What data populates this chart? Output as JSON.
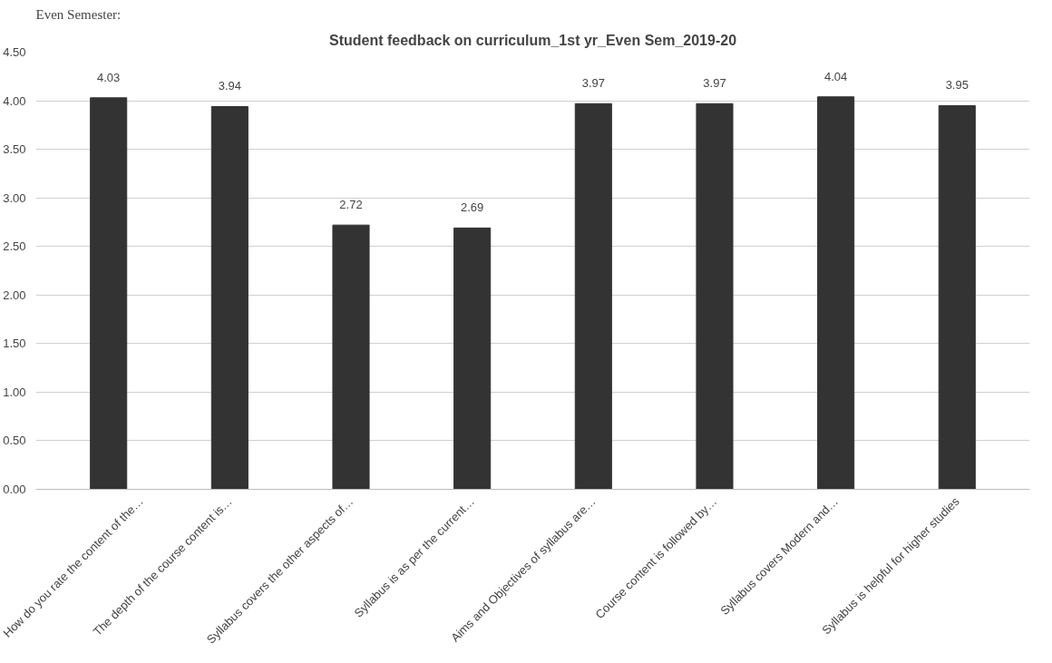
{
  "chart_data": {
    "type": "bar",
    "title": "Student feedback on curriculum_1st yr_Even Sem_2019-20",
    "categories": [
      "How do you rate the content of the…",
      "The depth of the course content is…",
      "Syllabus covers the other aspects of…",
      "Syllabus is as per the current…",
      "Aims and Objectives of syllabus are…",
      "Course content is followed by…",
      "Syllabus covers Modern and…",
      "Syllabus is helpful for higher studies"
    ],
    "values": [
      4.03,
      3.94,
      2.72,
      2.69,
      3.97,
      3.97,
      4.04,
      3.95
    ],
    "color": "#333333",
    "ylim": [
      0,
      4.5
    ],
    "yticks": [
      {
        "value": 0,
        "label": "0.00"
      },
      {
        "value": 0.5,
        "label": "0.50"
      },
      {
        "value": 1,
        "label": "1.00"
      },
      {
        "value": 1.5,
        "label": "1.50"
      },
      {
        "value": 2,
        "label": "2.00"
      },
      {
        "value": 2.5,
        "label": "2.50"
      },
      {
        "value": 3,
        "label": "3.00"
      },
      {
        "value": 3.5,
        "label": "3.50"
      },
      {
        "value": 4,
        "label": "4.00"
      },
      {
        "value": 4.5,
        "label": "4.50"
      }
    ],
    "grid": "y",
    "data_labels": true,
    "annotations": [
      "Even Semester:"
    ]
  }
}
